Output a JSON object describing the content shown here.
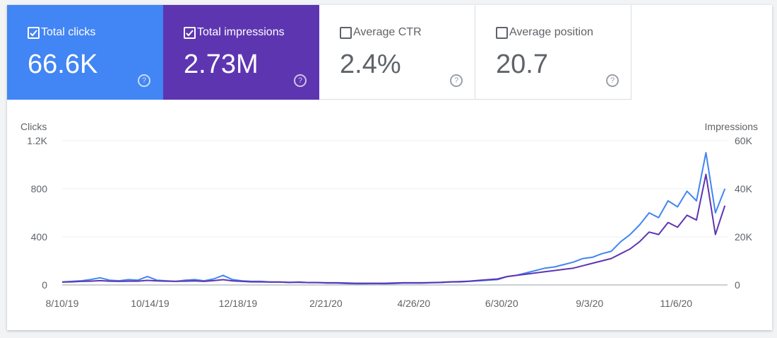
{
  "metrics": [
    {
      "label": "Total clicks",
      "value": "66.6K",
      "checked": true,
      "color": "#4285f4"
    },
    {
      "label": "Total impressions",
      "value": "2.73M",
      "checked": true,
      "color": "#5e35b1"
    },
    {
      "label": "Average CTR",
      "value": "2.4%",
      "checked": false,
      "color": "#ffffff"
    },
    {
      "label": "Average position",
      "value": "20.7",
      "checked": false,
      "color": "#ffffff"
    }
  ],
  "chart_data": {
    "type": "line",
    "ylabel": "Clicks",
    "y2label": "Impressions",
    "grid": true,
    "x": [
      "8/10/19",
      "8/17/19",
      "8/24/19",
      "8/31/19",
      "9/7/19",
      "9/14/19",
      "9/21/19",
      "9/28/19",
      "10/5/19",
      "10/12/19",
      "10/19/19",
      "10/26/19",
      "11/2/19",
      "11/9/19",
      "11/16/19",
      "11/23/19",
      "11/30/19",
      "12/7/19",
      "12/14/19",
      "12/21/19",
      "12/28/19",
      "1/4/20",
      "1/11/20",
      "1/18/20",
      "1/25/20",
      "2/1/20",
      "2/8/20",
      "2/15/20",
      "2/22/20",
      "2/29/20",
      "3/7/20",
      "3/14/20",
      "3/21/20",
      "3/28/20",
      "4/4/20",
      "4/11/20",
      "4/18/20",
      "4/25/20",
      "5/2/20",
      "5/9/20",
      "5/16/20",
      "5/23/20",
      "5/30/20",
      "6/6/20",
      "6/13/20",
      "6/20/20",
      "6/27/20",
      "7/4/20",
      "7/11/20",
      "7/18/20",
      "7/25/20",
      "8/1/20",
      "8/8/20",
      "8/15/20",
      "8/22/20",
      "8/29/20",
      "9/5/20",
      "9/12/20",
      "9/19/20",
      "9/26/20",
      "10/3/20",
      "10/10/20",
      "10/17/20",
      "10/24/20",
      "10/31/20",
      "11/7/20",
      "11/14/20",
      "11/21/20",
      "11/28/20",
      "12/5/20",
      "12/12/20"
    ],
    "xlim": [
      "8/10/19",
      "12/14/20"
    ],
    "xticks": [
      "8/10/19",
      "10/14/19",
      "12/18/19",
      "2/21/20",
      "4/26/20",
      "6/30/20",
      "9/3/20",
      "11/6/20"
    ],
    "ylim": [
      0,
      1200
    ],
    "yticks": [
      0,
      400,
      800,
      {
        "value": 1200,
        "label": "1.2K"
      }
    ],
    "y2lim": [
      0,
      60000
    ],
    "y2ticks": [
      0,
      {
        "value": 20000,
        "label": "20K"
      },
      {
        "value": 40000,
        "label": "40K"
      },
      {
        "value": 60000,
        "label": "60K"
      }
    ],
    "series": [
      {
        "name": "Clicks",
        "color": "#4285f4",
        "values": [
          25,
          30,
          35,
          45,
          60,
          40,
          35,
          45,
          40,
          70,
          40,
          35,
          30,
          40,
          45,
          35,
          50,
          80,
          45,
          35,
          30,
          30,
          25,
          25,
          20,
          25,
          20,
          20,
          15,
          15,
          12,
          10,
          10,
          12,
          10,
          12,
          15,
          15,
          15,
          18,
          20,
          25,
          25,
          30,
          35,
          40,
          45,
          70,
          80,
          100,
          120,
          140,
          150,
          170,
          190,
          220,
          230,
          260,
          280,
          360,
          420,
          500,
          600,
          560,
          700,
          650,
          780,
          700,
          1100,
          600,
          800
        ]
      },
      {
        "name": "Impressions",
        "color": "#5e35b1",
        "axis": "y2",
        "values": [
          1200,
          1300,
          1500,
          1600,
          1800,
          1600,
          1500,
          1600,
          1600,
          1900,
          1700,
          1600,
          1500,
          1600,
          1700,
          1500,
          1800,
          2200,
          1700,
          1500,
          1300,
          1300,
          1200,
          1200,
          1100,
          1100,
          1000,
          1000,
          900,
          900,
          800,
          700,
          700,
          700,
          700,
          800,
          900,
          900,
          900,
          1000,
          1100,
          1300,
          1400,
          1600,
          1900,
          2200,
          2500,
          3500,
          4000,
          4500,
          5000,
          5500,
          6000,
          6500,
          7000,
          8000,
          9000,
          10000,
          11000,
          13000,
          15000,
          18000,
          22000,
          21000,
          26000,
          24000,
          29000,
          27000,
          46000,
          21000,
          33000
        ]
      }
    ]
  }
}
